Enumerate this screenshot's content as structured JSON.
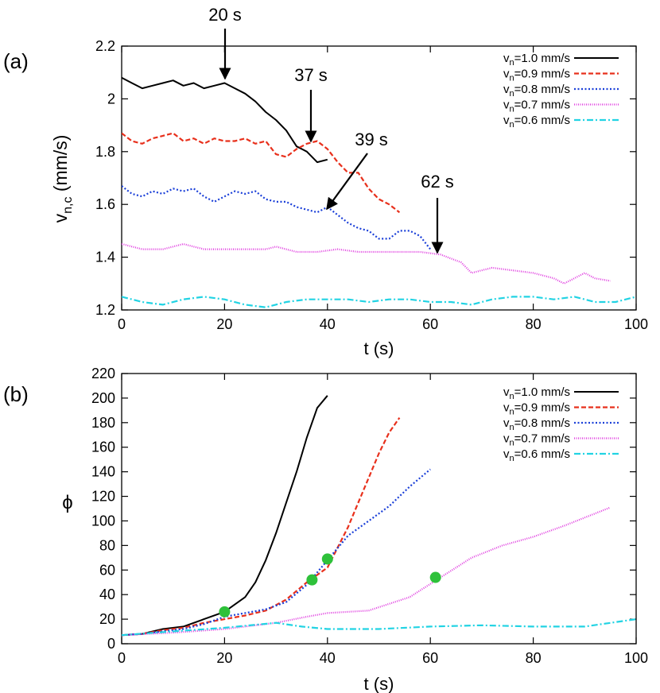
{
  "chart_data": [
    {
      "panel_label": "(a)",
      "type": "line",
      "xlabel": "t (s)",
      "ylabel_main": "v",
      "ylabel_sub": "n,c",
      "ylabel_unit": " (mm/s)",
      "xlim": [
        0,
        100
      ],
      "ylim": [
        1.2,
        2.2
      ],
      "xticks": [
        0,
        20,
        40,
        60,
        80,
        100
      ],
      "yticks": [
        1.2,
        1.4,
        1.6,
        1.8,
        2,
        2.2
      ],
      "ytick_labels": [
        "1.2",
        "1.4",
        "1.6",
        "1.8",
        "2",
        "2.2"
      ],
      "grid": false,
      "legend_position": "top-right",
      "series": [
        {
          "name": "v_n=1.0 mm/s",
          "legend_main": "v",
          "legend_sub": "n",
          "legend_rest": "=1.0 mm/s",
          "color": "#000000",
          "dash": "none",
          "x": [
            0,
            2,
            4,
            6,
            8,
            10,
            12,
            14,
            16,
            18,
            20,
            22,
            24,
            26,
            28,
            30,
            32,
            34,
            36,
            38,
            40
          ],
          "y": [
            2.08,
            2.06,
            2.04,
            2.05,
            2.06,
            2.07,
            2.05,
            2.06,
            2.04,
            2.05,
            2.06,
            2.04,
            2.02,
            1.99,
            1.95,
            1.92,
            1.88,
            1.82,
            1.8,
            1.76,
            1.77
          ]
        },
        {
          "name": "v_n=0.9 mm/s",
          "legend_main": "v",
          "legend_sub": "n",
          "legend_rest": "=0.9 mm/s",
          "color": "#e8301c",
          "dash": "6,3",
          "x": [
            0,
            2,
            4,
            6,
            8,
            10,
            12,
            14,
            16,
            18,
            20,
            22,
            24,
            26,
            28,
            30,
            32,
            34,
            36,
            38,
            40,
            42,
            44,
            46,
            48,
            50,
            52,
            54
          ],
          "y": [
            1.87,
            1.84,
            1.83,
            1.85,
            1.86,
            1.87,
            1.84,
            1.85,
            1.83,
            1.85,
            1.84,
            1.84,
            1.85,
            1.83,
            1.84,
            1.79,
            1.78,
            1.81,
            1.83,
            1.84,
            1.81,
            1.76,
            1.72,
            1.72,
            1.66,
            1.62,
            1.6,
            1.57
          ]
        },
        {
          "name": "v_n=0.8 mm/s",
          "legend_main": "v",
          "legend_sub": "n",
          "legend_rest": "=0.8 mm/s",
          "color": "#1a3fd8",
          "dash": "2,2.5",
          "x": [
            0,
            2,
            4,
            6,
            8,
            10,
            12,
            14,
            16,
            18,
            20,
            22,
            24,
            26,
            28,
            30,
            32,
            34,
            36,
            38,
            40,
            42,
            44,
            46,
            48,
            50,
            52,
            54,
            56,
            58,
            60
          ],
          "y": [
            1.67,
            1.64,
            1.63,
            1.65,
            1.64,
            1.66,
            1.65,
            1.66,
            1.63,
            1.61,
            1.63,
            1.65,
            1.64,
            1.65,
            1.62,
            1.61,
            1.61,
            1.59,
            1.58,
            1.57,
            1.59,
            1.56,
            1.53,
            1.51,
            1.5,
            1.47,
            1.47,
            1.5,
            1.5,
            1.48,
            1.43
          ]
        },
        {
          "name": "v_n=0.7 mm/s",
          "legend_main": "v",
          "legend_sub": "n",
          "legend_rest": "=0.7 mm/s",
          "color": "#e040e0",
          "dash": "1,1.5",
          "x": [
            0,
            4,
            8,
            12,
            16,
            20,
            24,
            28,
            30,
            34,
            38,
            42,
            46,
            50,
            54,
            58,
            62,
            66,
            68,
            72,
            76,
            80,
            84,
            86,
            90,
            92,
            95
          ],
          "y": [
            1.45,
            1.43,
            1.43,
            1.45,
            1.43,
            1.43,
            1.43,
            1.43,
            1.44,
            1.42,
            1.42,
            1.43,
            1.42,
            1.42,
            1.42,
            1.42,
            1.41,
            1.38,
            1.34,
            1.36,
            1.35,
            1.34,
            1.32,
            1.3,
            1.34,
            1.32,
            1.31
          ]
        },
        {
          "name": "v_n=0.6 mm/s",
          "legend_main": "v",
          "legend_sub": "n",
          "legend_rest": "=0.6 mm/s",
          "color": "#22d3e3",
          "dash": "8,3,2,3",
          "x": [
            0,
            4,
            8,
            12,
            16,
            20,
            24,
            28,
            32,
            36,
            40,
            44,
            48,
            52,
            56,
            60,
            64,
            68,
            72,
            76,
            80,
            84,
            88,
            92,
            96,
            100
          ],
          "y": [
            1.25,
            1.23,
            1.22,
            1.24,
            1.25,
            1.24,
            1.22,
            1.21,
            1.23,
            1.24,
            1.24,
            1.24,
            1.23,
            1.24,
            1.24,
            1.23,
            1.23,
            1.22,
            1.24,
            1.25,
            1.25,
            1.24,
            1.25,
            1.23,
            1.23,
            1.25
          ]
        }
      ],
      "annotations": [
        {
          "text": "20 s",
          "x": 20,
          "y": 2.06
        },
        {
          "text": "37 s",
          "x": 37,
          "y": 1.84
        },
        {
          "text": "39 s",
          "x": 39,
          "y": 1.58
        },
        {
          "text": "62 s",
          "x": 61,
          "y": 1.42
        }
      ]
    },
    {
      "panel_label": "(b)",
      "type": "line",
      "xlabel": "t (s)",
      "ylabel": "ϕ",
      "xlim": [
        0,
        100
      ],
      "ylim": [
        0,
        220
      ],
      "xticks": [
        0,
        20,
        40,
        60,
        80,
        100
      ],
      "yticks": [
        0,
        20,
        40,
        60,
        80,
        100,
        120,
        140,
        160,
        180,
        200,
        220
      ],
      "ytick_labels": [
        "0",
        "20",
        "40",
        "60",
        "80",
        "100",
        "120",
        "140",
        "160",
        "180",
        "200",
        "220"
      ],
      "grid": false,
      "legend_position": "top-right",
      "series": [
        {
          "name": "v_n=1.0 mm/s",
          "legend_main": "v",
          "legend_sub": "n",
          "legend_rest": "=1.0 mm/s",
          "color": "#000000",
          "dash": "none",
          "x": [
            0,
            4,
            8,
            12,
            16,
            20,
            24,
            26,
            28,
            30,
            32,
            34,
            36,
            38,
            40
          ],
          "y": [
            7,
            8,
            12,
            14,
            20,
            26,
            38,
            50,
            68,
            90,
            115,
            140,
            168,
            192,
            202
          ]
        },
        {
          "name": "v_n=0.9 mm/s",
          "legend_main": "v",
          "legend_sub": "n",
          "legend_rest": "=0.9 mm/s",
          "color": "#e8301c",
          "dash": "6,3",
          "x": [
            0,
            4,
            8,
            12,
            16,
            20,
            24,
            28,
            32,
            36,
            40,
            44,
            46,
            48,
            50,
            52,
            54
          ],
          "y": [
            7,
            8,
            11,
            13,
            17,
            20,
            23,
            27,
            36,
            50,
            62,
            95,
            115,
            135,
            155,
            172,
            184
          ]
        },
        {
          "name": "v_n=0.8 mm/s",
          "legend_main": "v",
          "legend_sub": "n",
          "legend_rest": "=0.8 mm/s",
          "color": "#1a3fd8",
          "dash": "2,2.5",
          "x": [
            0,
            4,
            8,
            12,
            16,
            20,
            24,
            28,
            32,
            36,
            40,
            44,
            48,
            52,
            56,
            60
          ],
          "y": [
            7,
            8,
            10,
            12,
            16,
            22,
            25,
            28,
            34,
            48,
            68,
            88,
            100,
            112,
            128,
            142
          ]
        },
        {
          "name": "v_n=0.7 mm/s",
          "legend_main": "v",
          "legend_sub": "n",
          "legend_rest": "=0.7 mm/s",
          "color": "#e040e0",
          "dash": "1,1.5",
          "x": [
            0,
            10,
            20,
            30,
            36,
            40,
            48,
            56,
            62,
            68,
            74,
            80,
            86,
            92,
            95
          ],
          "y": [
            7,
            9,
            12,
            17,
            22,
            25,
            27,
            38,
            54,
            70,
            80,
            87,
            96,
            106,
            111
          ]
        },
        {
          "name": "v_n=0.6 mm/s",
          "legend_main": "v",
          "legend_sub": "n",
          "legend_rest": "=0.6 mm/s",
          "color": "#22d3e3",
          "dash": "8,3,2,3",
          "x": [
            0,
            10,
            20,
            30,
            35,
            40,
            50,
            60,
            70,
            80,
            90,
            100
          ],
          "y": [
            7,
            10,
            13,
            17,
            14,
            12,
            12,
            14,
            15,
            14,
            14,
            20
          ]
        }
      ],
      "markers": [
        {
          "x": 20,
          "y": 26,
          "color": "#2ec13a"
        },
        {
          "x": 37,
          "y": 52,
          "color": "#2ec13a"
        },
        {
          "x": 40,
          "y": 69,
          "color": "#2ec13a"
        },
        {
          "x": 61,
          "y": 54,
          "color": "#2ec13a"
        }
      ]
    }
  ]
}
